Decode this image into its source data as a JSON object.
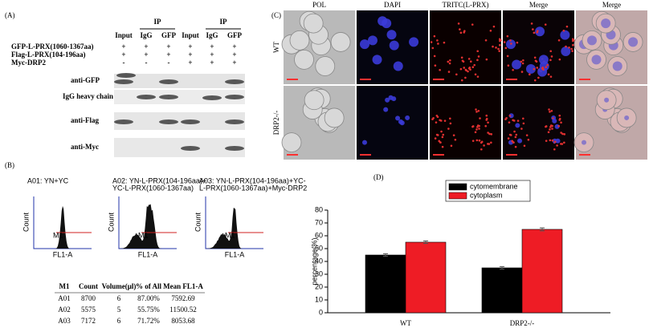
{
  "panel_a": {
    "label": "(A)",
    "ip_headers": [
      "IP",
      "IP"
    ],
    "columns": [
      "Input",
      "IgG",
      "GFP",
      "Input",
      "IgG",
      "GFP"
    ],
    "rows": [
      {
        "name": "GFP-L-PRX(1060-1367aa)",
        "marks": [
          "+",
          "+",
          "+",
          "+",
          "+",
          "+"
        ]
      },
      {
        "name": "Flag-L-PRX(104-196aa)",
        "marks": [
          "+",
          "+",
          "+",
          "+",
          "+",
          "+"
        ]
      },
      {
        "name": "Myc-DRP2",
        "marks": [
          "-",
          "-",
          "-",
          "+",
          "+",
          "+"
        ]
      }
    ],
    "blots": [
      "anti-GFP",
      "IgG heavy chain",
      "anti-Flag",
      "anti-Myc"
    ]
  },
  "panel_b": {
    "label": "(B)",
    "histograms": [
      {
        "title": [
          "A01: YN+YC"
        ]
      },
      {
        "title": [
          "A02: YN-L-PRX(104-196aa)+",
          "YC-L-PRX(1060-1367aa)"
        ]
      },
      {
        "title": [
          "A03: YN-L-PRX(104-196aa)+YC-",
          "L-PRX(1060-1367aa)+Myc-DRP2"
        ]
      }
    ],
    "x_label": "FL1-A",
    "y_label": "Count",
    "gate": "M1",
    "table": {
      "header": [
        "M1",
        "Count",
        "Volume(μl)",
        "% of All",
        "Mean FL1-A"
      ],
      "rows": [
        [
          "A01",
          "8700",
          "6",
          "87.00%",
          "7592.69"
        ],
        [
          "A02",
          "5575",
          "5",
          "55.75%",
          "11500.52"
        ],
        [
          "A03",
          "7172",
          "6",
          "71.72%",
          "8053.68"
        ]
      ]
    }
  },
  "panel_c": {
    "label": "(C)",
    "columns": [
      "POL",
      "DAPI",
      "TRITC(L-PRX)",
      "Merge",
      "Merge"
    ],
    "rows": [
      "WT",
      "DRP2-/-"
    ]
  },
  "panel_d": {
    "label": "(D)"
  },
  "chart_data": {
    "type": "bar",
    "categories": [
      "WT",
      "DRP2-/-"
    ],
    "y_label": "percentage(%)",
    "series": [
      {
        "name": "cytomembrane",
        "color": "#000000",
        "values": [
          45,
          35
        ],
        "errors": [
          1,
          1
        ]
      },
      {
        "name": "cytoplasm",
        "color": "#ee1c25",
        "values": [
          55,
          65
        ],
        "errors": [
          1,
          1.2
        ]
      }
    ],
    "ylim": [
      0,
      80
    ],
    "yticks": [
      0,
      10,
      20,
      30,
      40,
      50,
      60,
      70,
      80
    ]
  }
}
